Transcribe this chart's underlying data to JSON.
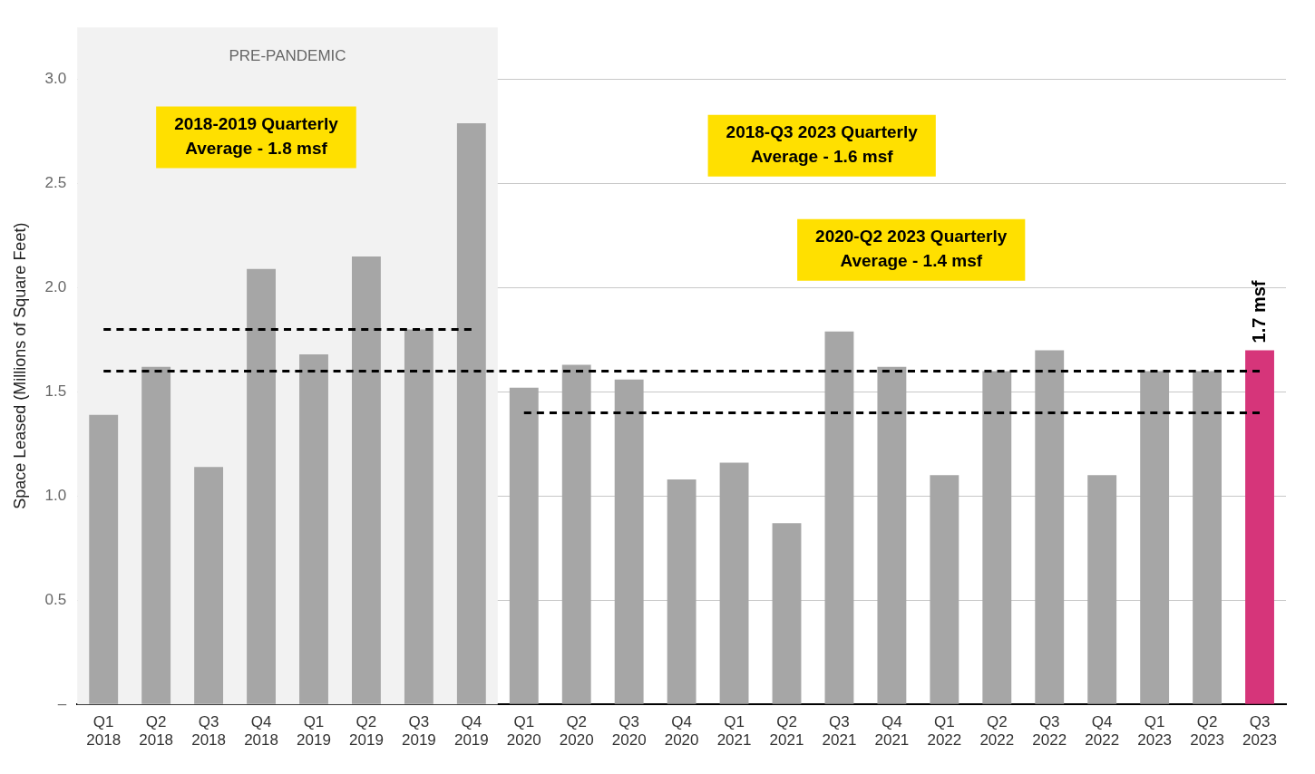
{
  "chart_data": {
    "type": "bar",
    "ylabel": "Space Leased (Millions of Square Feet)",
    "categories": [
      "Q1 2018",
      "Q2 2018",
      "Q3 2018",
      "Q4 2018",
      "Q1 2019",
      "Q2 2019",
      "Q3 2019",
      "Q4 2019",
      "Q1 2020",
      "Q2 2020",
      "Q3 2020",
      "Q4 2020",
      "Q1 2021",
      "Q2 2021",
      "Q3 2021",
      "Q4 2021",
      "Q1 2022",
      "Q2 2022",
      "Q3 2022",
      "Q4 2022",
      "Q1 2023",
      "Q2 2023",
      "Q3 2023"
    ],
    "series": [
      {
        "colors": [
          "#a6a6a6",
          "#a6a6a6",
          "#a6a6a6",
          "#a6a6a6",
          "#a6a6a6",
          "#a6a6a6",
          "#a6a6a6",
          "#a6a6a6",
          "#a6a6a6",
          "#a6a6a6",
          "#a6a6a6",
          "#a6a6a6",
          "#a6a6a6",
          "#a6a6a6",
          "#a6a6a6",
          "#a6a6a6",
          "#a6a6a6",
          "#a6a6a6",
          "#a6a6a6",
          "#a6a6a6",
          "#a6a6a6",
          "#a6a6a6",
          "#d6357a"
        ],
        "values": [
          1.39,
          1.62,
          1.14,
          2.09,
          1.68,
          2.15,
          1.8,
          2.79,
          1.52,
          1.63,
          1.56,
          1.08,
          1.16,
          0.87,
          1.79,
          1.62,
          1.1,
          1.6,
          1.7,
          1.1,
          1.6,
          1.6,
          1.7
        ],
        "value_labels": [
          null,
          null,
          null,
          null,
          null,
          null,
          null,
          null,
          null,
          null,
          null,
          null,
          null,
          null,
          null,
          null,
          null,
          null,
          null,
          null,
          null,
          null,
          "1.7 msf"
        ]
      },
      {
        "type": "line",
        "color": "#000000",
        "line_style": "dashed",
        "values": [
          1.8,
          1.8,
          1.8,
          1.8,
          1.8,
          1.8,
          1.8,
          1.8,
          null,
          null,
          null,
          null,
          null,
          null,
          null,
          null,
          null,
          null,
          null,
          null,
          null,
          null,
          null
        ]
      },
      {
        "type": "line",
        "color": "#000000",
        "line_style": "dashed",
        "values": [
          1.6,
          1.6,
          1.6,
          1.6,
          1.6,
          1.6,
          1.6,
          1.6,
          1.6,
          1.6,
          1.6,
          1.6,
          1.6,
          1.6,
          1.6,
          1.6,
          1.6,
          1.6,
          1.6,
          1.6,
          1.6,
          1.6,
          1.6
        ]
      },
      {
        "type": "line",
        "color": "#000000",
        "line_style": "dashed",
        "values": [
          null,
          null,
          null,
          null,
          null,
          null,
          null,
          null,
          1.4,
          1.4,
          1.4,
          1.4,
          1.4,
          1.4,
          1.4,
          1.4,
          1.4,
          1.4,
          1.4,
          1.4,
          1.4,
          1.4,
          1.4
        ]
      }
    ],
    "annotations": [
      "2018-2019 Quarterly\nAverage - 1.8 msf",
      "2018-Q3 2023 Quarterly\nAverage - 1.6 msf",
      "2020-Q2 2023 Quarterly\nAverage - 1.4 msf"
    ],
    "bands": [
      {
        "axis": "x",
        "from": "Q1 2018",
        "to": "Q4 2019",
        "label": "PRE-PANDEMIC",
        "color": "#f2f2f2"
      }
    ],
    "ylim": [
      0,
      3.25
    ],
    "yticks": [
      {
        "value": 0,
        "label": "–"
      },
      0.5,
      {
        "value": 1,
        "label": "1.0"
      },
      1.5,
      {
        "value": 2,
        "label": "2.0"
      },
      2.5,
      {
        "value": 3,
        "label": "3.0"
      }
    ],
    "grid": "y",
    "legend": false
  }
}
